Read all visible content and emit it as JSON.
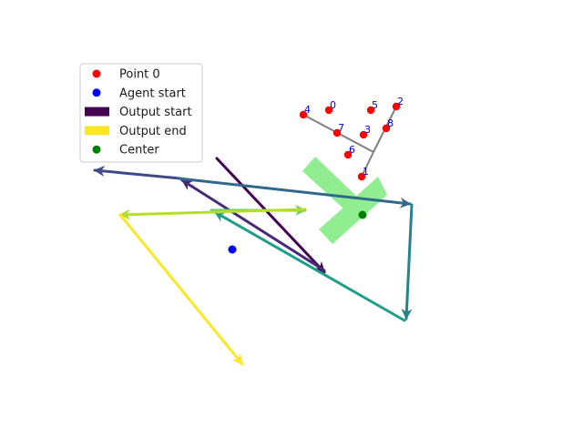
{
  "chart_data": {
    "type": "scatter",
    "title": "",
    "xlabel": "",
    "ylabel": "",
    "axes_visible": false,
    "xlim": [
      0,
      640
    ],
    "ylim": [
      480,
      0
    ],
    "legend": {
      "placement": "top-left",
      "entries": [
        {
          "label": "Point 0",
          "marker": "circle",
          "color": "#ff0000"
        },
        {
          "label": "Agent start",
          "marker": "circle",
          "color": "#0000ff"
        },
        {
          "label": "Output start",
          "marker": "bar",
          "color": "#440154"
        },
        {
          "label": "Output end",
          "marker": "bar",
          "color": "#fde725"
        },
        {
          "label": "Center",
          "marker": "circle",
          "color": "#008000"
        }
      ]
    },
    "numbered_points": [
      {
        "label": "0",
        "x": 361,
        "y": 359
      },
      {
        "label": "1",
        "x": 397,
        "y": 286
      },
      {
        "label": "2",
        "x": 435,
        "y": 363
      },
      {
        "label": "3",
        "x": 399,
        "y": 332
      },
      {
        "label": "4",
        "x": 333,
        "y": 354
      },
      {
        "label": "5",
        "x": 407,
        "y": 359
      },
      {
        "label": "6",
        "x": 382,
        "y": 310
      },
      {
        "label": "7",
        "x": 370,
        "y": 334
      },
      {
        "label": "8",
        "x": 424,
        "y": 339
      }
    ],
    "skeleton_lines": [
      {
        "from": [
          397,
          286
        ],
        "to": [
          410,
          313
        ]
      },
      {
        "from": [
          410,
          313
        ],
        "to": [
          435,
          363
        ]
      },
      {
        "from": [
          410,
          313
        ],
        "to": [
          333,
          354
        ]
      }
    ],
    "agent_start": {
      "x": 255,
      "y": 206
    },
    "center": {
      "x": 398,
      "y": 244
    },
    "arrows": [
      {
        "from": [
          238,
          306
        ],
        "to": [
          356,
          181
        ],
        "color": "#440154"
      },
      {
        "from": [
          356,
          183
        ],
        "to": [
          200,
          282
        ],
        "color": "#482878"
      },
      {
        "from": [
          198,
          284
        ],
        "to": [
          104,
          293
        ],
        "color": "#3e4a89"
      },
      {
        "from": [
          196,
          284
        ],
        "to": [
          450,
          256
        ],
        "color": "#31688e"
      },
      {
        "from": [
          452,
          255
        ],
        "to": [
          446,
          130
        ],
        "color": "#26828e"
      },
      {
        "from": [
          444,
          128
        ],
        "to": [
          236,
          247
        ],
        "color": "#1f9e89"
      },
      {
        "from": [
          232,
          249
        ],
        "to": [
          335,
          249
        ],
        "color": "#6ece58"
      },
      {
        "from": [
          335,
          250
        ],
        "to": [
          132,
          244
        ],
        "color": "#b5de2b"
      },
      {
        "from": [
          132,
          244
        ],
        "to": [
          266,
          80
        ],
        "color": "#fde725"
      }
    ],
    "green_region": {
      "color": "#90ee90",
      "polygons": [
        [
          [
            365,
            212
          ],
          [
            425,
            266
          ],
          [
            415,
            286
          ],
          [
            350,
            228
          ]
        ],
        [
          [
            378,
            250
          ],
          [
            394,
            262
          ],
          [
            346,
            308
          ],
          [
            332,
            292
          ]
        ]
      ]
    }
  }
}
